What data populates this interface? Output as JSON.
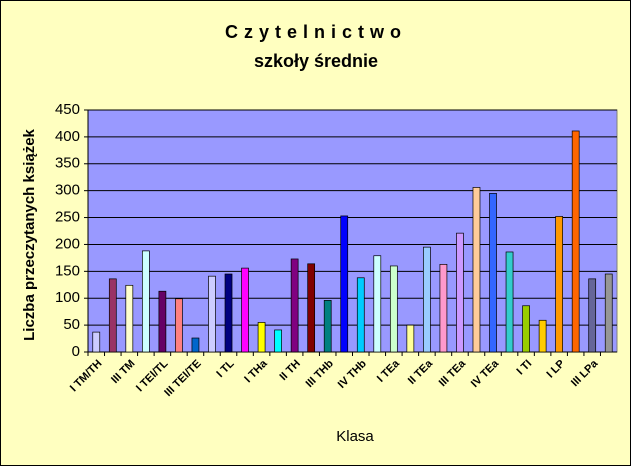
{
  "chart_data": {
    "type": "bar",
    "title": "Czytelnictwo",
    "subtitle": "szkoły średnie",
    "x_label": "Klasa",
    "y_label": "Liczba przeczytanych książek",
    "categories": [
      "I TM/TH",
      null,
      "III TM",
      null,
      "I TEl/TL",
      null,
      "III TEl/TE",
      null,
      "I TL",
      null,
      "I THa",
      null,
      "II TH",
      null,
      "III THb",
      null,
      "IV THb",
      null,
      "I TEa",
      null,
      "II TEa",
      null,
      "III TEa",
      null,
      "IV TEa",
      null,
      "I TI",
      null,
      "I LP",
      null,
      "III LPa",
      null
    ],
    "values": [
      37,
      136,
      124,
      188,
      113,
      99,
      26,
      141,
      145,
      156,
      55,
      41,
      173,
      164,
      96,
      253,
      138,
      179,
      160,
      50,
      195,
      163,
      221,
      306,
      295,
      186,
      86,
      59,
      252,
      411,
      136,
      145
    ],
    "colors": [
      "#ccccff",
      "#993366",
      "#ffffcc",
      "#ccffff",
      "#660066",
      "#ff8080",
      "#0066cc",
      "#ccccff",
      "#000080",
      "#ff00ff",
      "#ffff00",
      "#00ffff",
      "#800080",
      "#800000",
      "#008080",
      "#0000ff",
      "#00ccff",
      "#ccffff",
      "#ccffcc",
      "#ffff99",
      "#99ccff",
      "#ff99cc",
      "#cc99ff",
      "#ffcc99",
      "#3366ff",
      "#33cccc",
      "#99cc00",
      "#ffcc00",
      "#ff9900",
      "#ff6600",
      "#666699",
      "#969696"
    ],
    "ylim": [
      0,
      450
    ],
    "yticks": [
      0,
      50,
      100,
      150,
      200,
      250,
      300,
      350,
      400,
      450
    ],
    "grid": true
  }
}
